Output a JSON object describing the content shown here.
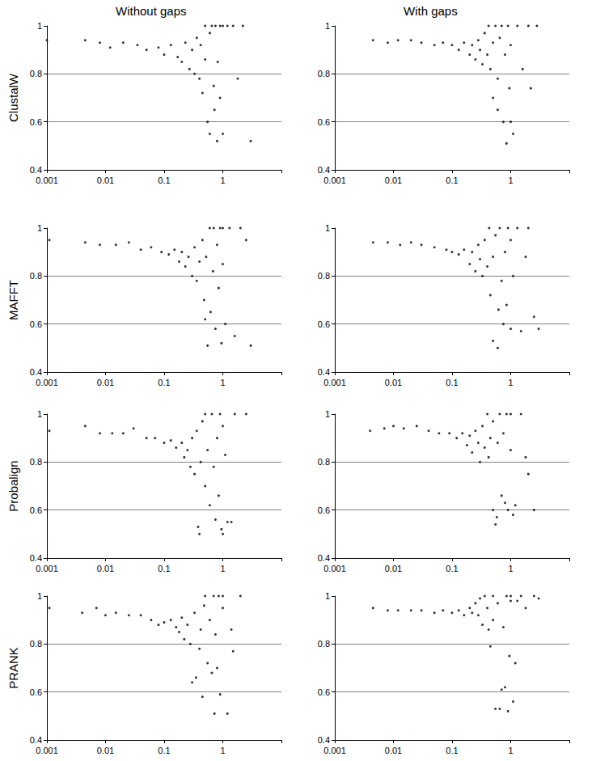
{
  "column_titles": [
    "Without gaps",
    "With gaps"
  ],
  "row_titles": [
    "ClustalW",
    "MAFFT",
    "Probalign",
    "PRANK"
  ],
  "chart_data": [
    {
      "type": "scatter",
      "color": "#000000",
      "marker": "circle",
      "log": "x",
      "grid": true,
      "xlim": [
        0.001,
        10
      ],
      "xticks": [
        0.001,
        0.01,
        0.1,
        1
      ],
      "ylim": [
        0.4,
        1
      ],
      "yticks": [
        0.4,
        0.6,
        0.8,
        1
      ],
      "x": [
        0.001,
        0.0045,
        0.008,
        0.012,
        0.02,
        0.035,
        0.05,
        0.08,
        0.1,
        0.13,
        0.17,
        0.2,
        0.23,
        0.27,
        0.3,
        0.33,
        0.36,
        0.4,
        0.42,
        0.45,
        0.5,
        0.5,
        0.55,
        0.6,
        0.6,
        0.65,
        0.7,
        0.72,
        0.75,
        0.8,
        0.82,
        0.9,
        0.9,
        1,
        1,
        1.2,
        1.5,
        1.8,
        2.2,
        3
      ],
      "values": [
        0.94,
        0.94,
        0.93,
        0.91,
        0.93,
        0.92,
        0.9,
        0.91,
        0.88,
        0.92,
        0.87,
        0.85,
        0.93,
        0.82,
        0.9,
        0.8,
        0.95,
        0.78,
        0.92,
        0.72,
        0.86,
        1,
        0.6,
        0.97,
        0.55,
        1,
        0.75,
        0.65,
        1,
        0.52,
        0.85,
        1,
        0.7,
        1,
        0.55,
        1,
        1,
        0.78,
        1,
        0.52
      ]
    },
    {
      "type": "scatter",
      "color": "#000000",
      "marker": "circle",
      "log": "x",
      "grid": true,
      "xlim": [
        0.001,
        10
      ],
      "xticks": [
        0.001,
        0.01,
        0.1,
        1
      ],
      "ylim": [
        0.4,
        1
      ],
      "yticks": [
        0.4,
        0.6,
        0.8,
        1
      ],
      "x": [
        0.0045,
        0.008,
        0.012,
        0.02,
        0.03,
        0.05,
        0.07,
        0.1,
        0.13,
        0.16,
        0.2,
        0.22,
        0.25,
        0.28,
        0.3,
        0.33,
        0.36,
        0.4,
        0.42,
        0.45,
        0.5,
        0.5,
        0.55,
        0.6,
        0.6,
        0.65,
        0.7,
        0.75,
        0.8,
        0.85,
        0.9,
        0.95,
        1,
        1,
        1.1,
        1.3,
        1.6,
        2,
        2.2,
        2.8
      ],
      "values": [
        0.94,
        0.93,
        0.94,
        0.94,
        0.93,
        0.92,
        0.93,
        0.92,
        0.9,
        0.93,
        0.88,
        0.92,
        0.86,
        0.94,
        0.9,
        0.84,
        0.97,
        0.88,
        1,
        0.82,
        0.93,
        0.7,
        1,
        0.78,
        0.65,
        0.95,
        1,
        0.6,
        0.88,
        0.51,
        1,
        0.74,
        0.6,
        0.92,
        0.55,
        1,
        0.82,
        1,
        0.74,
        1
      ]
    },
    {
      "type": "scatter",
      "color": "#000000",
      "marker": "circle",
      "log": "x",
      "grid": true,
      "xlim": [
        0.001,
        10
      ],
      "xticks": [
        0.001,
        0.01,
        0.1,
        1
      ],
      "ylim": [
        0.4,
        1
      ],
      "yticks": [
        0.4,
        0.6,
        0.8,
        1
      ],
      "x": [
        0.0011,
        0.0045,
        0.008,
        0.015,
        0.025,
        0.04,
        0.06,
        0.09,
        0.12,
        0.15,
        0.18,
        0.2,
        0.23,
        0.26,
        0.3,
        0.33,
        0.36,
        0.4,
        0.45,
        0.48,
        0.5,
        0.52,
        0.55,
        0.6,
        0.62,
        0.68,
        0.7,
        0.75,
        0.8,
        0.85,
        0.9,
        0.95,
        1,
        1,
        1.1,
        1.3,
        1.6,
        2,
        2.5,
        3
      ],
      "values": [
        0.95,
        0.94,
        0.93,
        0.93,
        0.94,
        0.91,
        0.92,
        0.9,
        0.89,
        0.91,
        0.86,
        0.9,
        0.84,
        0.88,
        0.8,
        0.92,
        0.78,
        0.86,
        0.95,
        0.7,
        0.62,
        0.88,
        0.51,
        1,
        0.65,
        0.82,
        1,
        0.58,
        0.93,
        0.75,
        1,
        0.52,
        0.85,
        1,
        0.6,
        1,
        0.55,
        1,
        0.95,
        0.51
      ]
    },
    {
      "type": "scatter",
      "color": "#000000",
      "marker": "circle",
      "log": "x",
      "grid": true,
      "xlim": [
        0.001,
        10
      ],
      "xticks": [
        0.001,
        0.01,
        0.1,
        1
      ],
      "ylim": [
        0.4,
        1
      ],
      "yticks": [
        0.4,
        0.6,
        0.8,
        1
      ],
      "x": [
        0.0045,
        0.008,
        0.013,
        0.02,
        0.03,
        0.05,
        0.08,
        0.1,
        0.13,
        0.16,
        0.2,
        0.22,
        0.25,
        0.28,
        0.3,
        0.33,
        0.36,
        0.4,
        0.43,
        0.45,
        0.5,
        0.5,
        0.55,
        0.6,
        0.62,
        0.65,
        0.7,
        0.75,
        0.8,
        0.85,
        0.9,
        1,
        1,
        1.1,
        1.3,
        1.5,
        1.8,
        2,
        2.5,
        3
      ],
      "values": [
        0.94,
        0.94,
        0.93,
        0.94,
        0.93,
        0.92,
        0.91,
        0.9,
        0.89,
        0.91,
        0.85,
        0.9,
        0.82,
        0.93,
        0.87,
        0.8,
        0.95,
        0.84,
        1,
        0.72,
        0.88,
        0.53,
        0.97,
        0.5,
        0.66,
        1,
        0.78,
        0.6,
        0.9,
        0.68,
        1,
        0.58,
        0.95,
        0.8,
        1,
        0.57,
        0.88,
        1,
        0.63,
        0.58
      ]
    },
    {
      "type": "scatter",
      "color": "#000000",
      "marker": "circle",
      "log": "x",
      "grid": true,
      "xlim": [
        0.001,
        10
      ],
      "xticks": [
        0.001,
        0.01,
        0.1,
        1
      ],
      "ylim": [
        0.4,
        1
      ],
      "yticks": [
        0.4,
        0.6,
        0.8,
        1
      ],
      "x": [
        0.0011,
        0.0045,
        0.008,
        0.013,
        0.02,
        0.03,
        0.05,
        0.07,
        0.1,
        0.13,
        0.16,
        0.2,
        0.22,
        0.25,
        0.28,
        0.3,
        0.33,
        0.36,
        0.38,
        0.4,
        0.42,
        0.45,
        0.5,
        0.5,
        0.55,
        0.6,
        0.65,
        0.7,
        0.75,
        0.8,
        0.85,
        0.9,
        0.95,
        1,
        1,
        1.1,
        1.2,
        1.4,
        1.6,
        2.5
      ],
      "values": [
        0.93,
        0.95,
        0.92,
        0.92,
        0.92,
        0.94,
        0.9,
        0.9,
        0.88,
        0.89,
        0.86,
        0.88,
        0.82,
        0.85,
        0.78,
        0.9,
        0.75,
        0.93,
        0.53,
        0.5,
        0.8,
        0.97,
        0.7,
        1,
        0.85,
        0.62,
        1,
        0.78,
        0.56,
        0.9,
        0.66,
        1,
        0.52,
        0.5,
        0.95,
        0.83,
        0.55,
        0.55,
        1,
        1
      ]
    },
    {
      "type": "scatter",
      "color": "#000000",
      "marker": "circle",
      "log": "x",
      "grid": true,
      "xlim": [
        0.001,
        10
      ],
      "xticks": [
        0.001,
        0.01,
        0.1,
        1
      ],
      "ylim": [
        0.4,
        1
      ],
      "yticks": [
        0.4,
        0.6,
        0.8,
        1
      ],
      "x": [
        0.004,
        0.007,
        0.01,
        0.015,
        0.025,
        0.04,
        0.06,
        0.09,
        0.12,
        0.15,
        0.18,
        0.2,
        0.22,
        0.25,
        0.28,
        0.3,
        0.33,
        0.36,
        0.4,
        0.42,
        0.45,
        0.5,
        0.5,
        0.55,
        0.58,
        0.6,
        0.65,
        0.7,
        0.75,
        0.8,
        0.85,
        0.9,
        1,
        1,
        1.1,
        1.2,
        1.5,
        1.8,
        2,
        2.5
      ],
      "values": [
        0.93,
        0.94,
        0.95,
        0.94,
        0.95,
        0.93,
        0.92,
        0.92,
        0.9,
        0.92,
        0.87,
        0.91,
        0.84,
        0.93,
        0.88,
        0.8,
        0.95,
        0.86,
        1,
        0.82,
        0.9,
        0.6,
        0.97,
        0.54,
        0.57,
        0.88,
        1,
        0.66,
        0.92,
        0.63,
        1,
        0.6,
        0.85,
        1,
        0.58,
        0.62,
        1,
        0.82,
        0.75,
        0.6
      ]
    },
    {
      "type": "scatter",
      "color": "#000000",
      "marker": "circle",
      "log": "x",
      "grid": true,
      "xlim": [
        0.001,
        10
      ],
      "xticks": [
        0.001,
        0.01,
        0.1,
        1
      ],
      "ylim": [
        0.4,
        1
      ],
      "yticks": [
        0.4,
        0.6,
        0.8,
        1
      ],
      "x": [
        0.0011,
        0.004,
        0.007,
        0.01,
        0.015,
        0.025,
        0.04,
        0.06,
        0.08,
        0.1,
        0.13,
        0.16,
        0.18,
        0.2,
        0.22,
        0.25,
        0.28,
        0.3,
        0.33,
        0.35,
        0.4,
        0.42,
        0.45,
        0.48,
        0.5,
        0.55,
        0.6,
        0.65,
        0.7,
        0.72,
        0.75,
        0.8,
        0.85,
        0.9,
        1,
        1,
        1.2,
        1.4,
        1.5,
        2
      ],
      "values": [
        0.95,
        0.93,
        0.95,
        0.92,
        0.93,
        0.92,
        0.92,
        0.9,
        0.88,
        0.89,
        0.9,
        0.87,
        0.85,
        0.91,
        0.82,
        0.88,
        0.8,
        0.64,
        0.93,
        0.66,
        0.78,
        0.86,
        0.58,
        0.96,
        1,
        0.72,
        0.9,
        0.68,
        1,
        0.51,
        0.84,
        0.7,
        1,
        0.59,
        0.95,
        1,
        0.51,
        0.86,
        0.77,
        1
      ]
    },
    {
      "type": "scatter",
      "color": "#000000",
      "marker": "circle",
      "log": "x",
      "grid": true,
      "xlim": [
        0.001,
        10
      ],
      "xticks": [
        0.001,
        0.01,
        0.1,
        1
      ],
      "ylim": [
        0.4,
        1
      ],
      "yticks": [
        0.4,
        0.6,
        0.8,
        1
      ],
      "x": [
        0.0045,
        0.008,
        0.012,
        0.02,
        0.03,
        0.05,
        0.07,
        0.1,
        0.13,
        0.16,
        0.2,
        0.22,
        0.25,
        0.28,
        0.3,
        0.33,
        0.36,
        0.4,
        0.42,
        0.45,
        0.5,
        0.5,
        0.55,
        0.6,
        0.65,
        0.7,
        0.75,
        0.8,
        0.85,
        0.9,
        0.95,
        1,
        1,
        1.1,
        1.2,
        1.3,
        1.5,
        1.8,
        2.5,
        3
      ],
      "values": [
        0.95,
        0.94,
        0.94,
        0.94,
        0.94,
        0.93,
        0.94,
        0.93,
        0.94,
        0.92,
        0.95,
        0.93,
        0.97,
        0.92,
        0.99,
        0.88,
        1,
        0.95,
        0.86,
        0.79,
        1,
        0.9,
        0.53,
        0.97,
        0.53,
        0.61,
        0.87,
        0.62,
        1,
        0.52,
        0.75,
        0.98,
        1,
        0.56,
        0.72,
        0.98,
        1,
        0.95,
        1,
        0.99
      ]
    }
  ]
}
